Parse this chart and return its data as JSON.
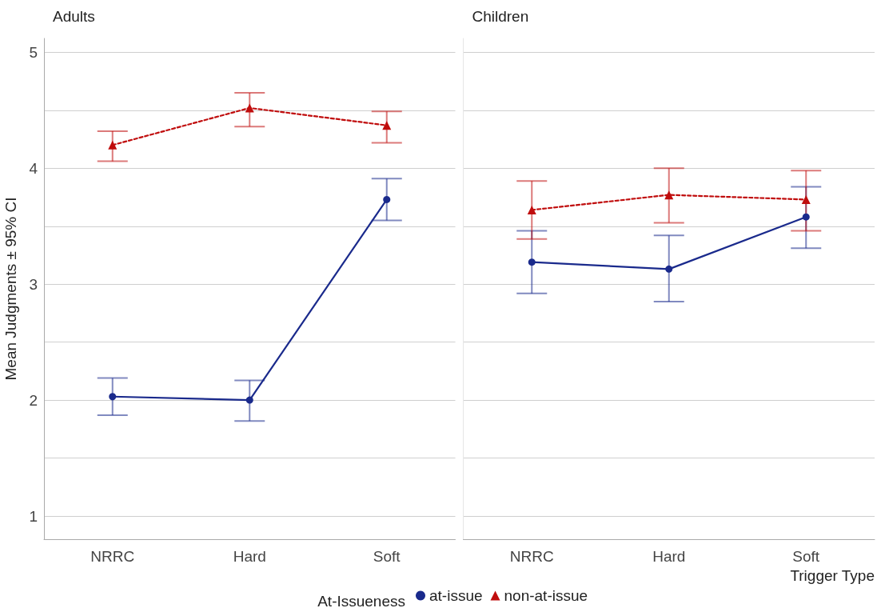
{
  "chart_data": [
    {
      "type": "line",
      "title": "Adults",
      "ylabel": "Mean Judgments ± 95% CI",
      "categories": [
        "NRRC",
        "Hard",
        "Soft"
      ],
      "series": [
        {
          "color": "#1a2a8c",
          "marker": "circle",
          "line_style": "solid",
          "values": [
            2.03,
            2.0,
            3.73
          ],
          "errors": [
            [
              1.87,
              2.19
            ],
            [
              1.82,
              2.17
            ],
            [
              3.55,
              3.91
            ]
          ]
        },
        {
          "color": "#c00d0d",
          "marker": "triangle",
          "line_style": "dashed",
          "values": [
            4.2,
            4.52,
            4.37
          ],
          "errors": [
            [
              4.06,
              4.32
            ],
            [
              4.36,
              4.65
            ],
            [
              4.22,
              4.49
            ]
          ]
        }
      ],
      "ylim": [
        0.8,
        5.12
      ],
      "yticks": [
        1,
        {
          "value": 1.5,
          "label": null
        },
        2,
        {
          "value": 2.5,
          "label": null
        },
        3,
        {
          "value": 3.5,
          "label": null
        },
        4,
        {
          "value": 4.5,
          "label": null
        },
        5
      ],
      "grid": "y"
    },
    {
      "type": "line",
      "title": "Children",
      "xlabel": "Trigger Type",
      "legend_title": "At-Issueness",
      "legend": "bottom",
      "tick_labels": "x",
      "categories": [
        "NRRC",
        "Hard",
        "Soft"
      ],
      "series": [
        {
          "name": "at-issue",
          "color": "#1a2a8c",
          "marker": "circle",
          "line_style": "solid",
          "values": [
            3.19,
            3.13,
            3.58
          ],
          "errors": [
            [
              2.92,
              3.46
            ],
            [
              2.85,
              3.42
            ],
            [
              3.31,
              3.84
            ]
          ]
        },
        {
          "name": "non-at-issue",
          "color": "#c00d0d",
          "marker": "triangle",
          "line_style": "dashed",
          "values": [
            3.64,
            3.77,
            3.73
          ],
          "errors": [
            [
              3.39,
              3.89
            ],
            [
              3.53,
              4.0
            ],
            [
              3.46,
              3.98
            ]
          ]
        }
      ],
      "ylim": [
        0.8,
        5.12
      ],
      "yticks": [
        1,
        {
          "value": 1.5,
          "label": null
        },
        2,
        {
          "value": 2.5,
          "label": null
        },
        3,
        {
          "value": 3.5,
          "label": null
        },
        4,
        {
          "value": 4.5,
          "label": null
        },
        5
      ],
      "grid": "y"
    }
  ]
}
